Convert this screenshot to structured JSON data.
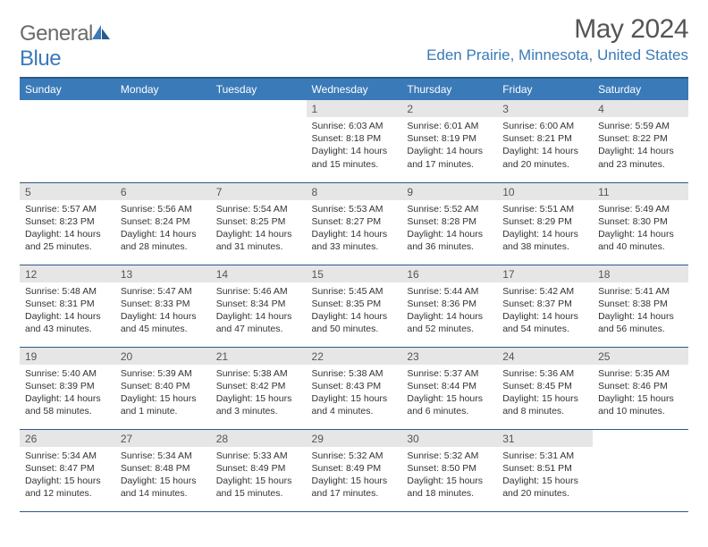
{
  "brand": {
    "text_gray": "General",
    "text_blue": "Blue",
    "accent_color": "#3a7ab8",
    "gray_color": "#6b6b6b"
  },
  "title": "May 2024",
  "location": "Eden Prairie, Minnesota, United States",
  "colors": {
    "header_bg": "#3a7ab8",
    "header_border": "#2a5a8a",
    "daynum_bg": "#e6e6e6",
    "text": "#333333",
    "title_text": "#555555"
  },
  "weekdays": [
    "Sunday",
    "Monday",
    "Tuesday",
    "Wednesday",
    "Thursday",
    "Friday",
    "Saturday"
  ],
  "weeks": [
    [
      {
        "day": "",
        "lines": []
      },
      {
        "day": "",
        "lines": []
      },
      {
        "day": "",
        "lines": []
      },
      {
        "day": "1",
        "lines": [
          "Sunrise: 6:03 AM",
          "Sunset: 8:18 PM",
          "Daylight: 14 hours and 15 minutes."
        ]
      },
      {
        "day": "2",
        "lines": [
          "Sunrise: 6:01 AM",
          "Sunset: 8:19 PM",
          "Daylight: 14 hours and 17 minutes."
        ]
      },
      {
        "day": "3",
        "lines": [
          "Sunrise: 6:00 AM",
          "Sunset: 8:21 PM",
          "Daylight: 14 hours and 20 minutes."
        ]
      },
      {
        "day": "4",
        "lines": [
          "Sunrise: 5:59 AM",
          "Sunset: 8:22 PM",
          "Daylight: 14 hours and 23 minutes."
        ]
      }
    ],
    [
      {
        "day": "5",
        "lines": [
          "Sunrise: 5:57 AM",
          "Sunset: 8:23 PM",
          "Daylight: 14 hours and 25 minutes."
        ]
      },
      {
        "day": "6",
        "lines": [
          "Sunrise: 5:56 AM",
          "Sunset: 8:24 PM",
          "Daylight: 14 hours and 28 minutes."
        ]
      },
      {
        "day": "7",
        "lines": [
          "Sunrise: 5:54 AM",
          "Sunset: 8:25 PM",
          "Daylight: 14 hours and 31 minutes."
        ]
      },
      {
        "day": "8",
        "lines": [
          "Sunrise: 5:53 AM",
          "Sunset: 8:27 PM",
          "Daylight: 14 hours and 33 minutes."
        ]
      },
      {
        "day": "9",
        "lines": [
          "Sunrise: 5:52 AM",
          "Sunset: 8:28 PM",
          "Daylight: 14 hours and 36 minutes."
        ]
      },
      {
        "day": "10",
        "lines": [
          "Sunrise: 5:51 AM",
          "Sunset: 8:29 PM",
          "Daylight: 14 hours and 38 minutes."
        ]
      },
      {
        "day": "11",
        "lines": [
          "Sunrise: 5:49 AM",
          "Sunset: 8:30 PM",
          "Daylight: 14 hours and 40 minutes."
        ]
      }
    ],
    [
      {
        "day": "12",
        "lines": [
          "Sunrise: 5:48 AM",
          "Sunset: 8:31 PM",
          "Daylight: 14 hours and 43 minutes."
        ]
      },
      {
        "day": "13",
        "lines": [
          "Sunrise: 5:47 AM",
          "Sunset: 8:33 PM",
          "Daylight: 14 hours and 45 minutes."
        ]
      },
      {
        "day": "14",
        "lines": [
          "Sunrise: 5:46 AM",
          "Sunset: 8:34 PM",
          "Daylight: 14 hours and 47 minutes."
        ]
      },
      {
        "day": "15",
        "lines": [
          "Sunrise: 5:45 AM",
          "Sunset: 8:35 PM",
          "Daylight: 14 hours and 50 minutes."
        ]
      },
      {
        "day": "16",
        "lines": [
          "Sunrise: 5:44 AM",
          "Sunset: 8:36 PM",
          "Daylight: 14 hours and 52 minutes."
        ]
      },
      {
        "day": "17",
        "lines": [
          "Sunrise: 5:42 AM",
          "Sunset: 8:37 PM",
          "Daylight: 14 hours and 54 minutes."
        ]
      },
      {
        "day": "18",
        "lines": [
          "Sunrise: 5:41 AM",
          "Sunset: 8:38 PM",
          "Daylight: 14 hours and 56 minutes."
        ]
      }
    ],
    [
      {
        "day": "19",
        "lines": [
          "Sunrise: 5:40 AM",
          "Sunset: 8:39 PM",
          "Daylight: 14 hours and 58 minutes."
        ]
      },
      {
        "day": "20",
        "lines": [
          "Sunrise: 5:39 AM",
          "Sunset: 8:40 PM",
          "Daylight: 15 hours and 1 minute."
        ]
      },
      {
        "day": "21",
        "lines": [
          "Sunrise: 5:38 AM",
          "Sunset: 8:42 PM",
          "Daylight: 15 hours and 3 minutes."
        ]
      },
      {
        "day": "22",
        "lines": [
          "Sunrise: 5:38 AM",
          "Sunset: 8:43 PM",
          "Daylight: 15 hours and 4 minutes."
        ]
      },
      {
        "day": "23",
        "lines": [
          "Sunrise: 5:37 AM",
          "Sunset: 8:44 PM",
          "Daylight: 15 hours and 6 minutes."
        ]
      },
      {
        "day": "24",
        "lines": [
          "Sunrise: 5:36 AM",
          "Sunset: 8:45 PM",
          "Daylight: 15 hours and 8 minutes."
        ]
      },
      {
        "day": "25",
        "lines": [
          "Sunrise: 5:35 AM",
          "Sunset: 8:46 PM",
          "Daylight: 15 hours and 10 minutes."
        ]
      }
    ],
    [
      {
        "day": "26",
        "lines": [
          "Sunrise: 5:34 AM",
          "Sunset: 8:47 PM",
          "Daylight: 15 hours and 12 minutes."
        ]
      },
      {
        "day": "27",
        "lines": [
          "Sunrise: 5:34 AM",
          "Sunset: 8:48 PM",
          "Daylight: 15 hours and 14 minutes."
        ]
      },
      {
        "day": "28",
        "lines": [
          "Sunrise: 5:33 AM",
          "Sunset: 8:49 PM",
          "Daylight: 15 hours and 15 minutes."
        ]
      },
      {
        "day": "29",
        "lines": [
          "Sunrise: 5:32 AM",
          "Sunset: 8:49 PM",
          "Daylight: 15 hours and 17 minutes."
        ]
      },
      {
        "day": "30",
        "lines": [
          "Sunrise: 5:32 AM",
          "Sunset: 8:50 PM",
          "Daylight: 15 hours and 18 minutes."
        ]
      },
      {
        "day": "31",
        "lines": [
          "Sunrise: 5:31 AM",
          "Sunset: 8:51 PM",
          "Daylight: 15 hours and 20 minutes."
        ]
      },
      {
        "day": "",
        "lines": []
      }
    ]
  ]
}
